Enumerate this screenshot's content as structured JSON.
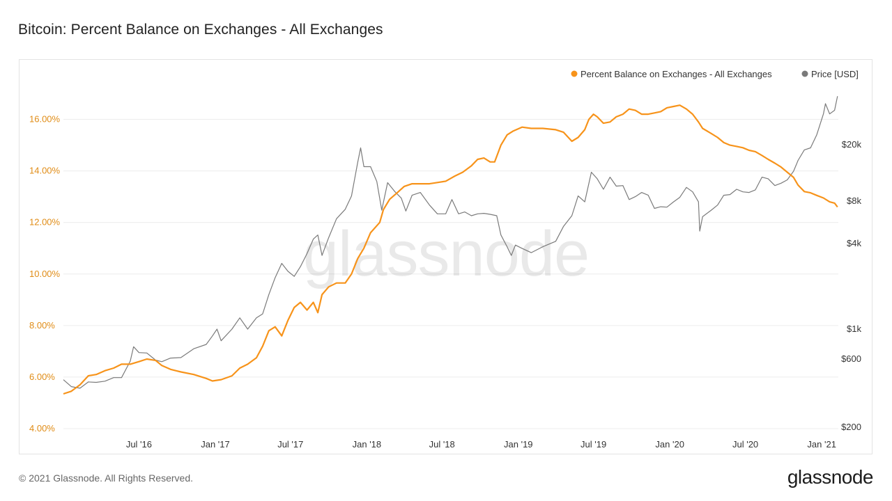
{
  "title": "Bitcoin: Percent Balance on Exchanges - All Exchanges",
  "footer": {
    "copyright": "© 2021 Glassnode. All Rights Reserved.",
    "logo_text": "glassnode"
  },
  "watermark": "glassnode",
  "colors": {
    "balance_series": "#f7931a",
    "price_series": "#7a7a7a",
    "left_axis_text": "#e08c16",
    "gridline": "#ececec"
  },
  "chart_data": {
    "type": "line",
    "title": "Bitcoin: Percent Balance on Exchanges - All Exchanges",
    "x_axis": {
      "type": "date",
      "range": [
        "2016-01-01",
        "2021-02-10"
      ],
      "ticks": [
        {
          "date": "2016-07-01",
          "label": "Jul '16"
        },
        {
          "date": "2017-01-01",
          "label": "Jan '17"
        },
        {
          "date": "2017-07-01",
          "label": "Jul '17"
        },
        {
          "date": "2018-01-01",
          "label": "Jan '18"
        },
        {
          "date": "2018-07-01",
          "label": "Jul '18"
        },
        {
          "date": "2019-01-01",
          "label": "Jan '19"
        },
        {
          "date": "2019-07-01",
          "label": "Jul '19"
        },
        {
          "date": "2020-01-01",
          "label": "Jan '20"
        },
        {
          "date": "2020-07-01",
          "label": "Jul '20"
        },
        {
          "date": "2021-01-01",
          "label": "Jan '21"
        }
      ]
    },
    "y_left": {
      "unit": "percent",
      "range": [
        4,
        17.5
      ],
      "ticks": [
        {
          "value": 4,
          "label": "4.00%"
        },
        {
          "value": 6,
          "label": "6.00%"
        },
        {
          "value": 8,
          "label": "8.00%"
        },
        {
          "value": 10,
          "label": "10.00%"
        },
        {
          "value": 12,
          "label": "12.00%"
        },
        {
          "value": 14,
          "label": "14.00%"
        },
        {
          "value": 16,
          "label": "16.00%"
        }
      ]
    },
    "y_right": {
      "scale": "log",
      "unit": "USD",
      "ticks": [
        {
          "value": 200,
          "label": "$200"
        },
        {
          "value": 600,
          "label": "$600"
        },
        {
          "value": 1000,
          "label": "$1k"
        },
        {
          "value": 4000,
          "label": "$4k"
        },
        {
          "value": 8000,
          "label": "$8k"
        },
        {
          "value": 20000,
          "label": "$20k"
        }
      ]
    },
    "legend_position": "top-right",
    "grid": "horizontal",
    "series": [
      {
        "name": "Percent Balance on Exchanges - All Exchanges",
        "axis": "left",
        "color": "#f7931a",
        "points": [
          [
            "2016-01-01",
            5.35
          ],
          [
            "2016-01-20",
            5.45
          ],
          [
            "2016-02-10",
            5.7
          ],
          [
            "2016-03-01",
            6.05
          ],
          [
            "2016-03-20",
            6.1
          ],
          [
            "2016-04-10",
            6.25
          ],
          [
            "2016-05-01",
            6.35
          ],
          [
            "2016-05-20",
            6.5
          ],
          [
            "2016-06-10",
            6.5
          ],
          [
            "2016-07-01",
            6.6
          ],
          [
            "2016-07-20",
            6.7
          ],
          [
            "2016-08-10",
            6.65
          ],
          [
            "2016-08-25",
            6.45
          ],
          [
            "2016-09-15",
            6.3
          ],
          [
            "2016-10-10",
            6.2
          ],
          [
            "2016-11-10",
            6.1
          ],
          [
            "2016-12-10",
            5.95
          ],
          [
            "2016-12-25",
            5.85
          ],
          [
            "2017-01-15",
            5.9
          ],
          [
            "2017-02-10",
            6.05
          ],
          [
            "2017-03-01",
            6.35
          ],
          [
            "2017-03-20",
            6.5
          ],
          [
            "2017-04-10",
            6.75
          ],
          [
            "2017-04-25",
            7.2
          ],
          [
            "2017-05-10",
            7.8
          ],
          [
            "2017-05-25",
            7.95
          ],
          [
            "2017-06-10",
            7.6
          ],
          [
            "2017-06-25",
            8.2
          ],
          [
            "2017-07-10",
            8.7
          ],
          [
            "2017-07-25",
            8.9
          ],
          [
            "2017-08-10",
            8.6
          ],
          [
            "2017-08-25",
            8.9
          ],
          [
            "2017-09-05",
            8.5
          ],
          [
            "2017-09-15",
            9.2
          ],
          [
            "2017-10-01",
            9.5
          ],
          [
            "2017-10-20",
            9.65
          ],
          [
            "2017-11-10",
            9.65
          ],
          [
            "2017-11-25",
            10.0
          ],
          [
            "2017-12-10",
            10.6
          ],
          [
            "2017-12-25",
            11.0
          ],
          [
            "2018-01-10",
            11.6
          ],
          [
            "2018-02-01",
            12.0
          ],
          [
            "2018-02-10",
            12.5
          ],
          [
            "2018-02-25",
            12.9
          ],
          [
            "2018-03-15",
            13.15
          ],
          [
            "2018-04-01",
            13.4
          ],
          [
            "2018-04-20",
            13.5
          ],
          [
            "2018-05-10",
            13.5
          ],
          [
            "2018-06-01",
            13.5
          ],
          [
            "2018-06-20",
            13.55
          ],
          [
            "2018-07-10",
            13.6
          ],
          [
            "2018-08-01",
            13.8
          ],
          [
            "2018-08-20",
            13.95
          ],
          [
            "2018-09-10",
            14.2
          ],
          [
            "2018-09-25",
            14.45
          ],
          [
            "2018-10-10",
            14.5
          ],
          [
            "2018-10-25",
            14.35
          ],
          [
            "2018-11-05",
            14.35
          ],
          [
            "2018-11-20",
            15.0
          ],
          [
            "2018-12-05",
            15.4
          ],
          [
            "2018-12-20",
            15.55
          ],
          [
            "2019-01-10",
            15.7
          ],
          [
            "2019-02-01",
            15.65
          ],
          [
            "2019-03-01",
            15.65
          ],
          [
            "2019-04-01",
            15.6
          ],
          [
            "2019-04-20",
            15.5
          ],
          [
            "2019-05-10",
            15.15
          ],
          [
            "2019-05-25",
            15.3
          ],
          [
            "2019-06-10",
            15.6
          ],
          [
            "2019-06-20",
            16.0
          ],
          [
            "2019-07-01",
            16.2
          ],
          [
            "2019-07-10",
            16.1
          ],
          [
            "2019-07-25",
            15.85
          ],
          [
            "2019-08-10",
            15.9
          ],
          [
            "2019-08-25",
            16.1
          ],
          [
            "2019-09-10",
            16.2
          ],
          [
            "2019-09-25",
            16.4
          ],
          [
            "2019-10-10",
            16.35
          ],
          [
            "2019-10-25",
            16.2
          ],
          [
            "2019-11-10",
            16.2
          ],
          [
            "2019-11-25",
            16.25
          ],
          [
            "2019-12-10",
            16.3
          ],
          [
            "2019-12-25",
            16.45
          ],
          [
            "2020-01-10",
            16.5
          ],
          [
            "2020-01-25",
            16.55
          ],
          [
            "2020-02-10",
            16.4
          ],
          [
            "2020-02-25",
            16.2
          ],
          [
            "2020-03-10",
            15.9
          ],
          [
            "2020-03-20",
            15.65
          ],
          [
            "2020-04-10",
            15.45
          ],
          [
            "2020-04-25",
            15.3
          ],
          [
            "2020-05-10",
            15.1
          ],
          [
            "2020-05-25",
            15.0
          ],
          [
            "2020-06-10",
            14.95
          ],
          [
            "2020-06-25",
            14.9
          ],
          [
            "2020-07-10",
            14.8
          ],
          [
            "2020-07-25",
            14.75
          ],
          [
            "2020-08-10",
            14.6
          ],
          [
            "2020-08-25",
            14.45
          ],
          [
            "2020-09-10",
            14.3
          ],
          [
            "2020-09-25",
            14.15
          ],
          [
            "2020-10-10",
            13.95
          ],
          [
            "2020-10-25",
            13.75
          ],
          [
            "2020-11-05",
            13.45
          ],
          [
            "2020-11-20",
            13.2
          ],
          [
            "2020-12-05",
            13.15
          ],
          [
            "2020-12-20",
            13.05
          ],
          [
            "2021-01-05",
            12.95
          ],
          [
            "2021-01-20",
            12.8
          ],
          [
            "2021-02-01",
            12.75
          ],
          [
            "2021-02-08",
            12.6
          ]
        ]
      },
      {
        "name": "Price [USD]",
        "axis": "right",
        "color": "#7a7a7a",
        "points": [
          [
            "2016-01-01",
            430
          ],
          [
            "2016-01-20",
            385
          ],
          [
            "2016-02-10",
            375
          ],
          [
            "2016-03-01",
            415
          ],
          [
            "2016-03-20",
            412
          ],
          [
            "2016-04-10",
            420
          ],
          [
            "2016-05-01",
            445
          ],
          [
            "2016-05-20",
            445
          ],
          [
            "2016-06-10",
            580
          ],
          [
            "2016-06-18",
            740
          ],
          [
            "2016-07-01",
            670
          ],
          [
            "2016-07-20",
            665
          ],
          [
            "2016-08-10",
            590
          ],
          [
            "2016-08-25",
            575
          ],
          [
            "2016-09-15",
            610
          ],
          [
            "2016-10-10",
            615
          ],
          [
            "2016-11-10",
            715
          ],
          [
            "2016-12-10",
            770
          ],
          [
            "2016-12-25",
            890
          ],
          [
            "2017-01-05",
            1000
          ],
          [
            "2017-01-15",
            820
          ],
          [
            "2017-02-10",
            1000
          ],
          [
            "2017-03-01",
            1200
          ],
          [
            "2017-03-20",
            1000
          ],
          [
            "2017-04-10",
            1200
          ],
          [
            "2017-04-25",
            1280
          ],
          [
            "2017-05-10",
            1750
          ],
          [
            "2017-05-25",
            2300
          ],
          [
            "2017-06-10",
            2900
          ],
          [
            "2017-06-25",
            2550
          ],
          [
            "2017-07-10",
            2350
          ],
          [
            "2017-07-25",
            2750
          ],
          [
            "2017-08-10",
            3400
          ],
          [
            "2017-08-25",
            4300
          ],
          [
            "2017-09-05",
            4600
          ],
          [
            "2017-09-15",
            3300
          ],
          [
            "2017-10-01",
            4400
          ],
          [
            "2017-10-20",
            6000
          ],
          [
            "2017-11-10",
            7000
          ],
          [
            "2017-11-25",
            8700
          ],
          [
            "2017-12-10",
            15000
          ],
          [
            "2017-12-17",
            19000
          ],
          [
            "2017-12-25",
            14000
          ],
          [
            "2018-01-10",
            14000
          ],
          [
            "2018-01-25",
            11000
          ],
          [
            "2018-02-06",
            6900
          ],
          [
            "2018-02-20",
            10800
          ],
          [
            "2018-03-10",
            9300
          ],
          [
            "2018-03-25",
            8400
          ],
          [
            "2018-04-05",
            6800
          ],
          [
            "2018-04-20",
            8800
          ],
          [
            "2018-05-10",
            9200
          ],
          [
            "2018-06-01",
            7500
          ],
          [
            "2018-06-20",
            6500
          ],
          [
            "2018-07-10",
            6500
          ],
          [
            "2018-07-25",
            8200
          ],
          [
            "2018-08-10",
            6500
          ],
          [
            "2018-08-25",
            6700
          ],
          [
            "2018-09-10",
            6300
          ],
          [
            "2018-09-25",
            6500
          ],
          [
            "2018-10-10",
            6550
          ],
          [
            "2018-10-25",
            6450
          ],
          [
            "2018-11-10",
            6300
          ],
          [
            "2018-11-20",
            4600
          ],
          [
            "2018-12-05",
            3800
          ],
          [
            "2018-12-15",
            3300
          ],
          [
            "2018-12-25",
            3900
          ],
          [
            "2019-01-10",
            3700
          ],
          [
            "2019-02-01",
            3450
          ],
          [
            "2019-03-01",
            3800
          ],
          [
            "2019-04-01",
            4150
          ],
          [
            "2019-04-20",
            5300
          ],
          [
            "2019-05-10",
            6300
          ],
          [
            "2019-05-25",
            8700
          ],
          [
            "2019-06-10",
            7900
          ],
          [
            "2019-06-26",
            12800
          ],
          [
            "2019-07-10",
            11500
          ],
          [
            "2019-07-25",
            9700
          ],
          [
            "2019-08-10",
            11800
          ],
          [
            "2019-08-25",
            10200
          ],
          [
            "2019-09-10",
            10300
          ],
          [
            "2019-09-25",
            8200
          ],
          [
            "2019-10-10",
            8600
          ],
          [
            "2019-10-25",
            9200
          ],
          [
            "2019-11-10",
            8800
          ],
          [
            "2019-11-25",
            7100
          ],
          [
            "2019-12-10",
            7300
          ],
          [
            "2019-12-25",
            7250
          ],
          [
            "2020-01-10",
            7900
          ],
          [
            "2020-01-25",
            8500
          ],
          [
            "2020-02-10",
            10000
          ],
          [
            "2020-02-25",
            9300
          ],
          [
            "2020-03-10",
            7900
          ],
          [
            "2020-03-13",
            4900
          ],
          [
            "2020-03-20",
            6200
          ],
          [
            "2020-04-10",
            6900
          ],
          [
            "2020-04-25",
            7500
          ],
          [
            "2020-05-10",
            8800
          ],
          [
            "2020-05-25",
            8900
          ],
          [
            "2020-06-10",
            9700
          ],
          [
            "2020-06-25",
            9300
          ],
          [
            "2020-07-10",
            9200
          ],
          [
            "2020-07-25",
            9600
          ],
          [
            "2020-08-10",
            11800
          ],
          [
            "2020-08-25",
            11500
          ],
          [
            "2020-09-10",
            10300
          ],
          [
            "2020-09-25",
            10700
          ],
          [
            "2020-10-10",
            11300
          ],
          [
            "2020-10-25",
            13000
          ],
          [
            "2020-11-05",
            15500
          ],
          [
            "2020-11-20",
            18400
          ],
          [
            "2020-12-05",
            19000
          ],
          [
            "2020-12-20",
            23500
          ],
          [
            "2021-01-05",
            33000
          ],
          [
            "2021-01-10",
            39000
          ],
          [
            "2021-01-20",
            33000
          ],
          [
            "2021-02-01",
            35000
          ],
          [
            "2021-02-08",
            44000
          ]
        ]
      }
    ]
  }
}
